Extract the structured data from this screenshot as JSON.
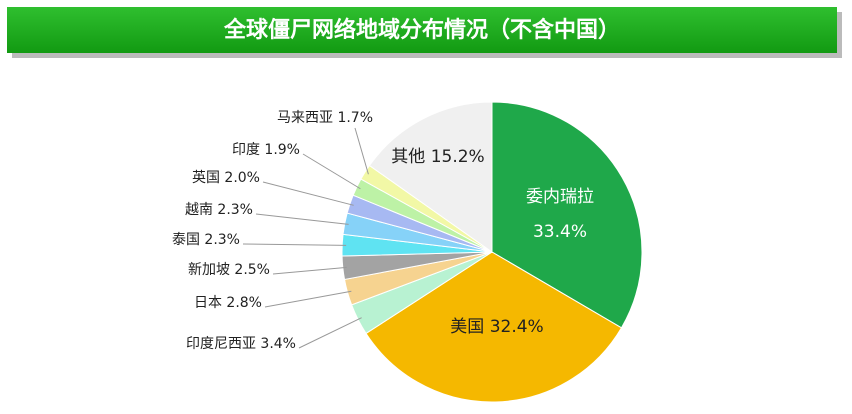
{
  "chart_data": {
    "type": "pie",
    "title": "全球僵尸网络地域分布情况（不含中国）",
    "categories": [
      "委内瑞拉",
      "美国",
      "印度尼西亚",
      "日本",
      "新加坡",
      "泰国",
      "越南",
      "英国",
      "印度",
      "马来西亚",
      "其他"
    ],
    "values": [
      33.4,
      32.4,
      3.4,
      2.8,
      2.5,
      2.3,
      2.3,
      2.0,
      1.9,
      1.7,
      15.2
    ],
    "value_labels": [
      "33.4%",
      "32.4%",
      "3.4%",
      "2.8%",
      "2.5%",
      "2.3%",
      "2.3%",
      "2.0%",
      "1.9%",
      "1.7%",
      "15.2%"
    ],
    "colors": [
      "#1fa84a",
      "#f5b800",
      "#b8f2d2",
      "#f6d390",
      "#a3a3a3",
      "#5fe3f2",
      "#86d2f8",
      "#a7b9f2",
      "#bdf2a6",
      "#f2f8a6",
      "#f0f0f0"
    ]
  }
}
